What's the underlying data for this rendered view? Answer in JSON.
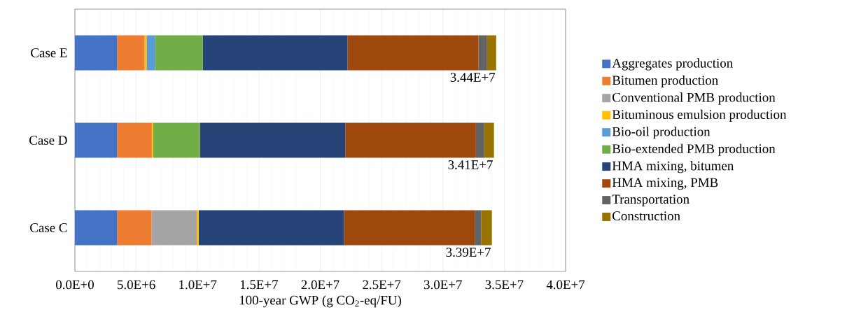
{
  "chart_data": {
    "type": "bar",
    "orientation": "horizontal",
    "stacked": true,
    "categories": [
      "Case E",
      "Case D",
      "Case C"
    ],
    "xlabel": "100-year GWP (g CO$_{2}$-eq/FU)",
    "xlim": [
      0,
      40000000
    ],
    "xticks": [
      {
        "value": 0,
        "label": "0.0E+0"
      },
      {
        "value": 5000000,
        "label": "5.0E+6"
      },
      {
        "value": 10000000,
        "label": "1.0E+7"
      },
      {
        "value": 15000000,
        "label": "1.5E+7"
      },
      {
        "value": 20000000,
        "label": "2.0E+7"
      },
      {
        "value": 25000000,
        "label": "2.5E+7"
      },
      {
        "value": 30000000,
        "label": "3.0E+7"
      },
      {
        "value": 35000000,
        "label": "3.5E+7"
      },
      {
        "value": 40000000,
        "label": "4.0E+7"
      }
    ],
    "grid": "x",
    "legend": "right",
    "totals": [
      "3.44E+7",
      "3.41E+7",
      "3.39E+7"
    ],
    "series": [
      {
        "name": "Aggregates production",
        "color": "#4472c4",
        "values": [
          3450000,
          3450000,
          3450000
        ]
      },
      {
        "name": "Bitumen production",
        "color": "#ed7d31",
        "values": [
          2230000,
          2820000,
          2800000
        ]
      },
      {
        "name": "Conventional PMB production",
        "color": "#a5a5a5",
        "values": [
          0,
          0,
          3680000
        ]
      },
      {
        "name": "Bituminous emulsion production",
        "color": "#ffc000",
        "values": [
          160000,
          110000,
          160000
        ]
      },
      {
        "name": "Bio-oil production",
        "color": "#5b9bd5",
        "values": [
          700000,
          0,
          0
        ]
      },
      {
        "name": "Bio-extended PMB production",
        "color": "#70ad47",
        "values": [
          3880000,
          3810000,
          0
        ]
      },
      {
        "name": "HMA mixing, bitumen",
        "color": "#264478",
        "values": [
          11800000,
          11850000,
          11850000
        ]
      },
      {
        "name": "HMA mixing, PMB",
        "color": "#9e480e",
        "values": [
          10680000,
          10650000,
          10650000
        ]
      },
      {
        "name": "Transportation",
        "color": "#636363",
        "values": [
          700000,
          680000,
          540000
        ]
      },
      {
        "name": "Construction",
        "color": "#997300",
        "values": [
          740000,
          790000,
          860000
        ]
      }
    ]
  }
}
